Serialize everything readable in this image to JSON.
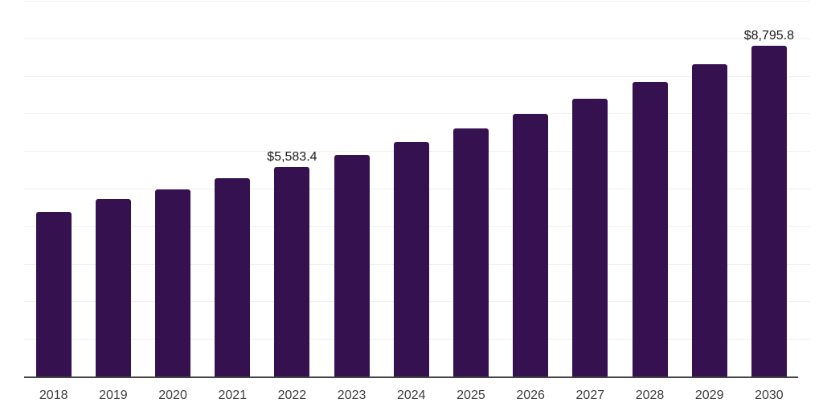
{
  "chart_data": {
    "type": "bar",
    "title": "",
    "xlabel": "",
    "ylabel": "",
    "categories": [
      "2018",
      "2019",
      "2020",
      "2021",
      "2022",
      "2023",
      "2024",
      "2025",
      "2026",
      "2027",
      "2028",
      "2029",
      "2030"
    ],
    "values": [
      4390,
      4715,
      4980,
      5285,
      5583.4,
      5895,
      6250,
      6605,
      6990,
      7390,
      7850,
      8305,
      8795.8
    ],
    "data_labels": [
      {
        "category": "2022",
        "text": "$5,583.4"
      },
      {
        "category": "2030",
        "text": "$8,795.8"
      }
    ],
    "ylim": [
      0,
      10000
    ],
    "grid_step": 1000,
    "grid": "horizontal-light",
    "legend": "none",
    "y_axis_labels": "none",
    "bar_color": "#351150"
  },
  "colors": {
    "bar": "#351150",
    "gridline": "#f0f0f0",
    "axis_line": "#444444",
    "tick_label": "#3d3d3d",
    "data_label": "#1a1a1a",
    "background": "#ffffff"
  }
}
